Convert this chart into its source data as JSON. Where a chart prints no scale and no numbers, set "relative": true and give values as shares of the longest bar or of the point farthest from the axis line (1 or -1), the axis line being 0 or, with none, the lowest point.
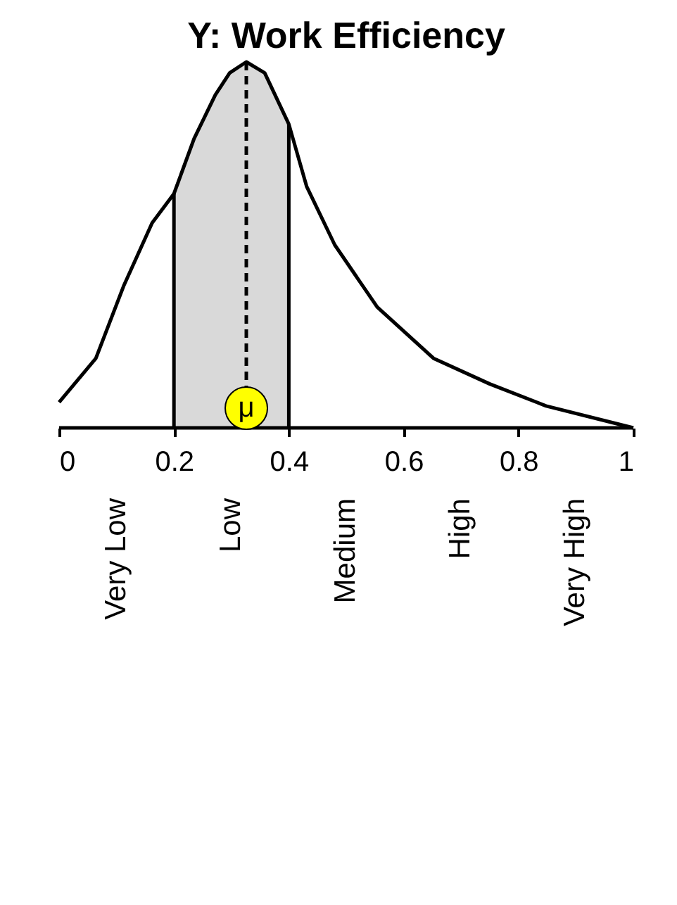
{
  "chart_data": {
    "type": "line",
    "title": "Y: Work Efficiency",
    "relative": true,
    "x": [
      0,
      0.064,
      0.113,
      0.162,
      0.2,
      0.235,
      0.272,
      0.297,
      0.326,
      0.358,
      0.4,
      0.431,
      0.48,
      0.554,
      0.652,
      0.75,
      0.848,
      1
    ],
    "series": [
      {
        "color": "#000000",
        "values": [
          0.07,
          0.19,
          0.39,
          0.56,
          0.64,
          0.79,
          0.91,
          0.97,
          1,
          0.97,
          0.83,
          0.66,
          0.5,
          0.33,
          0.19,
          0.12,
          0.06,
          0
        ]
      }
    ],
    "xlim": [
      0,
      1
    ],
    "xticks": [
      0,
      0.2,
      0.4,
      0.6,
      0.8,
      1
    ],
    "bands": [
      {
        "axis": "x",
        "from": 0.2,
        "to": 0.4,
        "color": "#d9d9d9"
      }
    ],
    "ref_lines": [
      {
        "axis": "x",
        "value": 0.2,
        "line_style": "solid"
      },
      {
        "axis": "x",
        "value": 0.326,
        "line_style": "dashed"
      },
      {
        "axis": "x",
        "value": 0.4,
        "line_style": "solid"
      }
    ],
    "annotations": [
      {
        "text": "μ",
        "x": 0.326,
        "y": 0
      },
      "Very Low",
      "Low",
      "Medium",
      "High",
      "Very High"
    ],
    "grid": false,
    "marker": "none",
    "line_style": "solid"
  }
}
